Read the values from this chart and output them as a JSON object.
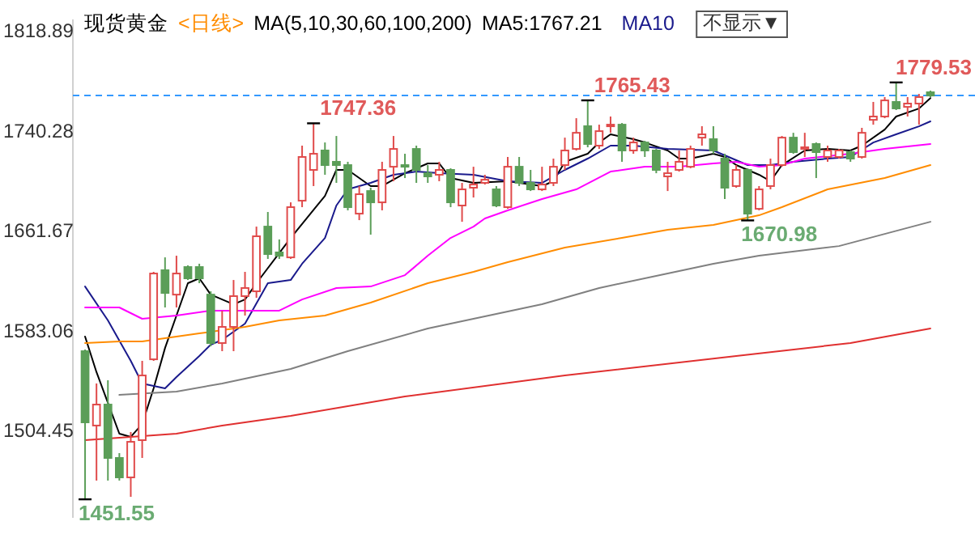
{
  "chart_data": {
    "type": "candlestick",
    "title": "现货黄金",
    "subtitle": "<日线>",
    "annotations": [
      "MA(5,10,30,60,100,200)",
      "不显示▼",
      "1451.55",
      "1747.36",
      "1765.43",
      "1670.98",
      "1779.53"
    ],
    "categories": [
      null,
      null,
      null,
      null,
      null,
      null,
      null,
      null,
      null,
      null,
      null,
      null,
      null,
      null,
      null,
      null,
      null,
      null,
      null,
      null,
      null,
      null,
      null,
      null,
      null,
      null,
      null,
      null,
      null,
      null,
      null,
      null,
      null,
      null,
      null,
      null,
      null,
      null,
      null,
      null,
      null,
      null,
      null,
      null,
      null,
      null,
      null,
      null,
      null,
      null,
      null,
      null,
      null,
      null,
      null,
      null,
      null,
      null,
      null,
      null,
      null,
      null,
      null,
      null,
      null,
      null,
      null,
      null,
      null,
      null,
      null,
      null,
      null,
      null,
      null
    ],
    "ohlc": [
      [
        1568.1,
        1569.4,
        1451.55,
        1512.1
      ],
      [
        1509.6,
        1542.7,
        1466.3,
        1526.1
      ],
      [
        1526.1,
        1545.2,
        1466.3,
        1484.1
      ],
      [
        1484.1,
        1487.9,
        1466.3,
        1468.8
      ],
      [
        1468.8,
        1504.5,
        1453.5,
        1496.8
      ],
      [
        1498.1,
        1560.5,
        1484.1,
        1549.0
      ],
      [
        1561.7,
        1630.5,
        1560.5,
        1629.2
      ],
      [
        1631.8,
        1641.9,
        1602.5,
        1613.9
      ],
      [
        1612.6,
        1643.2,
        1602.5,
        1629.2
      ],
      [
        1634.3,
        1635.6,
        1624.1,
        1625.4
      ],
      [
        1634.3,
        1636.9,
        1621.6,
        1625.4
      ],
      [
        1612.6,
        1615.2,
        1571.9,
        1574.5
      ],
      [
        1574.5,
        1599.9,
        1568.1,
        1587.2
      ],
      [
        1587.2,
        1624.1,
        1568.1,
        1611.4
      ],
      [
        1611.4,
        1630.5,
        1596.1,
        1617.8
      ],
      [
        1615.2,
        1666.1,
        1610.1,
        1658.5
      ],
      [
        1666.1,
        1677.6,
        1640.7,
        1644.5
      ],
      [
        1645.8,
        1656.0,
        1640.7,
        1643.2
      ],
      [
        1641.9,
        1685.2,
        1640.7,
        1681.4
      ],
      [
        1686.5,
        1729.8,
        1681.4,
        1720.9
      ],
      [
        1710.7,
        1747.36,
        1698.0,
        1723.4
      ],
      [
        1726.0,
        1732.3,
        1706.9,
        1714.5
      ],
      [
        1717.1,
        1737.4,
        1700.5,
        1714.5
      ],
      [
        1714.5,
        1717.1,
        1678.9,
        1681.4
      ],
      [
        1676.3,
        1698.0,
        1671.2,
        1691.6
      ],
      [
        1694.1,
        1696.7,
        1659.8,
        1685.2
      ],
      [
        1685.2,
        1717.1,
        1678.9,
        1710.7
      ],
      [
        1713.2,
        1737.4,
        1701.8,
        1727.2
      ],
      [
        1714.5,
        1723.4,
        1704.3,
        1713.2
      ],
      [
        1727.2,
        1729.8,
        1700.5,
        1710.7
      ],
      [
        1708.1,
        1714.5,
        1700.5,
        1705.6
      ],
      [
        1706.9,
        1717.1,
        1701.8,
        1710.7
      ],
      [
        1710.7,
        1712.0,
        1681.4,
        1685.2
      ],
      [
        1682.7,
        1700.5,
        1669.9,
        1695.4
      ],
      [
        1696.7,
        1713.2,
        1689.0,
        1699.2
      ],
      [
        1700.5,
        1706.9,
        1699.2,
        1703.0
      ],
      [
        1695.4,
        1698.0,
        1681.4,
        1682.7
      ],
      [
        1681.4,
        1720.9,
        1680.1,
        1713.2
      ],
      [
        1713.2,
        1720.9,
        1698.0,
        1700.5
      ],
      [
        1700.5,
        1710.7,
        1694.1,
        1695.4
      ],
      [
        1695.4,
        1713.2,
        1694.1,
        1699.2
      ],
      [
        1700.5,
        1719.6,
        1698.0,
        1713.2
      ],
      [
        1714.5,
        1736.1,
        1710.7,
        1726.0
      ],
      [
        1727.2,
        1751.4,
        1726.0,
        1739.9
      ],
      [
        1745.1,
        1765.43,
        1728.5,
        1731.1
      ],
      [
        1729.8,
        1746.3,
        1727.2,
        1741.2
      ],
      [
        1745.1,
        1752.7,
        1739.9,
        1746.3
      ],
      [
        1746.3,
        1747.6,
        1717.1,
        1726.0
      ],
      [
        1726.0,
        1736.1,
        1723.4,
        1732.3
      ],
      [
        1732.3,
        1733.6,
        1720.9,
        1726.0
      ],
      [
        1726.0,
        1727.2,
        1708.1,
        1710.7
      ],
      [
        1705.6,
        1717.1,
        1694.1,
        1708.1
      ],
      [
        1710.7,
        1726.0,
        1709.4,
        1717.1
      ],
      [
        1713.2,
        1729.8,
        1712.0,
        1727.2
      ],
      [
        1736.1,
        1745.1,
        1729.8,
        1738.7
      ],
      [
        1734.9,
        1745.1,
        1723.4,
        1726.0
      ],
      [
        1719.6,
        1723.4,
        1687.8,
        1696.7
      ],
      [
        1698.0,
        1714.5,
        1696.7,
        1710.7
      ],
      [
        1710.7,
        1712.0,
        1670.98,
        1676.3
      ],
      [
        1680.1,
        1698.0,
        1678.9,
        1695.4
      ],
      [
        1698.0,
        1719.6,
        1695.4,
        1714.5
      ],
      [
        1714.5,
        1737.4,
        1713.2,
        1736.1
      ],
      [
        1736.1,
        1739.9,
        1723.4,
        1724.7
      ],
      [
        1727.2,
        1739.9,
        1720.9,
        1728.5
      ],
      [
        1731.1,
        1732.3,
        1704.3,
        1724.7
      ],
      [
        1720.9,
        1729.8,
        1717.1,
        1726.0
      ],
      [
        1720.9,
        1727.2,
        1719.6,
        1726.0
      ],
      [
        1724.7,
        1726.0,
        1717.1,
        1719.6
      ],
      [
        1720.9,
        1743.8,
        1719.6,
        1739.9
      ],
      [
        1750.1,
        1764.2,
        1746.3,
        1752.7
      ],
      [
        1752.7,
        1768.0,
        1751.4,
        1765.4
      ],
      [
        1764.2,
        1779.53,
        1757.8,
        1759.1
      ],
      [
        1760.3,
        1768.0,
        1752.7,
        1762.9
      ],
      [
        1762.9,
        1770.5,
        1746.3,
        1768.0
      ],
      [
        1771.8,
        1773.1,
        1768.0,
        1769.2
      ]
    ],
    "series": [
      {
        "name": "MA5:1767.21",
        "type": "line",
        "color": "#000000",
        "values": [
          1579.6,
          1551.6,
          null,
          1503.2,
          1500.7,
          1510.8,
          1538.8,
          1570.6,
          1596.1,
          1621.6,
          1625.4,
          1612.6,
          null,
          1605.0,
          1608.8,
          1621.6,
          null,
          null,
          1657.2,
          null,
          null,
          1690.3,
          1710.7,
          1710.7,
          null,
          1698.0,
          1698.0,
          null,
          1708.1,
          null,
          1715.8,
          1715.8,
          1704.3,
          null,
          1700.5,
          null,
          null,
          1701.8,
          null,
          null,
          1698.0,
          1701.8,
          1717.1,
          null,
          1723.4,
          1732.3,
          1738.7,
          null,
          1734.9,
          1732.3,
          null,
          1726.0,
          1719.6,
          1719.6,
          null,
          1723.4,
          1720.9,
          1714.5,
          null,
          1706.9,
          1701.8,
          1714.5,
          null,
          1726.0,
          null,
          1727.2,
          null,
          1726.0,
          1729.8,
          null,
          1742.5,
          1752.7,
          null,
          1759.0,
          1767.21
        ]
      },
      {
        "name": "MA10",
        "type": "line",
        "color": "#1a1a8c",
        "values": [
          1619.0,
          null,
          1592.3,
          null,
          1560.5,
          1542.7,
          null,
          1538.8,
          1547.7,
          null,
          1564.3,
          1573.2,
          1577.0,
          null,
          1589.8,
          null,
          1621.6,
          null,
          1624.1,
          1636.9,
          null,
          1657.2,
          1682.7,
          1695.4,
          null,
          1700.5,
          null,
          1706.9,
          null,
          1709.4,
          null,
          1708.1,
          null,
          null,
          1706.9,
          null,
          null,
          1701.8,
          null,
          null,
          1700.5,
          null,
          1710.7,
          null,
          1719.6,
          null,
          1729.8,
          null,
          1729.8,
          null,
          null,
          1727.2,
          null,
          null,
          null,
          1726.0,
          null,
          null,
          1714.5,
          null,
          1714.5,
          null,
          1717.1,
          null,
          null,
          1719.6,
          null,
          1720.9,
          null,
          1732.3,
          null,
          1738.7,
          null,
          1745.0,
          1748.9
        ]
      },
      {
        "type": "line",
        "color": "#ff00ff",
        "values": [
          1602.5,
          null,
          null,
          1602.5,
          null,
          1593.6,
          null,
          null,
          1596.1,
          null,
          null,
          1600.0,
          null,
          null,
          1600.0,
          null,
          null,
          1600.0,
          null,
          1608.8,
          null,
          null,
          1617.8,
          null,
          null,
          1619.0,
          null,
          null,
          1627.9,
          null,
          1643.2,
          null,
          1657.2,
          null,
          1666.1,
          1672.5,
          null,
          1678.9,
          null,
          null,
          1687.8,
          null,
          null,
          1695.4,
          null,
          null,
          1709.4,
          null,
          null,
          1713.2,
          null,
          null,
          1713.2,
          null,
          null,
          1715.8,
          null,
          1717.1,
          null,
          1713.2,
          null,
          1714.5,
          null,
          1719.6,
          null,
          null,
          null,
          1723.4,
          null,
          null,
          1727.2,
          null,
          null,
          null,
          1731.1
        ]
      },
      {
        "type": "line",
        "color": "#ff8c00",
        "values": [
          1574.5,
          null,
          null,
          1575.7,
          null,
          1575.7,
          null,
          null,
          1579.6,
          null,
          1582.1,
          null,
          null,
          null,
          1587.2,
          null,
          null,
          1592.3,
          null,
          null,
          null,
          1596.1,
          null,
          null,
          null,
          1606.3,
          null,
          null,
          null,
          null,
          1621.6,
          null,
          null,
          null,
          1630.5,
          null,
          null,
          1638.1,
          null,
          null,
          null,
          null,
          1649.6,
          null,
          null,
          null,
          null,
          1657.2,
          null,
          null,
          null,
          1663.6,
          null,
          null,
          null,
          1667.4,
          null,
          null,
          null,
          1675.0,
          null,
          1681.4,
          null,
          null,
          null,
          1695.4,
          null,
          null,
          null,
          null,
          1704.3,
          null,
          null,
          null,
          1714.5
        ]
      },
      {
        "type": "line",
        "color": "#808080",
        "values": [
          null,
          null,
          null,
          1533.7,
          null,
          null,
          null,
          null,
          1536.3,
          null,
          null,
          null,
          1542.7,
          null,
          null,
          null,
          null,
          null,
          1554.1,
          null,
          null,
          null,
          null,
          1568.1,
          null,
          null,
          null,
          null,
          null,
          null,
          1585.9,
          null,
          null,
          null,
          1593.6,
          null,
          null,
          null,
          null,
          null,
          1605.0,
          null,
          null,
          null,
          null,
          1617.8,
          null,
          null,
          null,
          null,
          null,
          1629.2,
          null,
          null,
          null,
          1636.9,
          null,
          null,
          null,
          1643.2,
          null,
          null,
          null,
          null,
          null,
          null,
          1650.8,
          null,
          null,
          null,
          null,
          null,
          null,
          null,
          1669.9
        ]
      },
      {
        "type": "line",
        "color": "#e03030",
        "values": [
          1498.1,
          null,
          null,
          null,
          null,
          null,
          null,
          null,
          1503.2,
          null,
          null,
          null,
          1509.6,
          null,
          null,
          null,
          null,
          null,
          1517.2,
          null,
          null,
          null,
          null,
          null,
          null,
          null,
          null,
          null,
          1532.5,
          null,
          null,
          null,
          null,
          null,
          null,
          null,
          null,
          null,
          null,
          null,
          null,
          null,
          1549.0,
          null,
          null,
          null,
          null,
          null,
          null,
          null,
          null,
          null,
          null,
          null,
          null,
          null,
          null,
          1564.3,
          null,
          null,
          null,
          null,
          null,
          null,
          null,
          null,
          null,
          1574.5,
          null,
          null,
          null,
          null,
          null,
          null,
          1586.0
        ]
      }
    ],
    "ylim": [
      1437.0,
      1829.1
    ],
    "yticks": [
      1504.45,
      1583.06,
      1661.67,
      1740.28,
      1818.89
    ],
    "ref_lines": [
      {
        "axis": "y",
        "value": 1769.2,
        "color": "#3399ff",
        "line_style": "dashed"
      }
    ],
    "legend": "top"
  }
}
